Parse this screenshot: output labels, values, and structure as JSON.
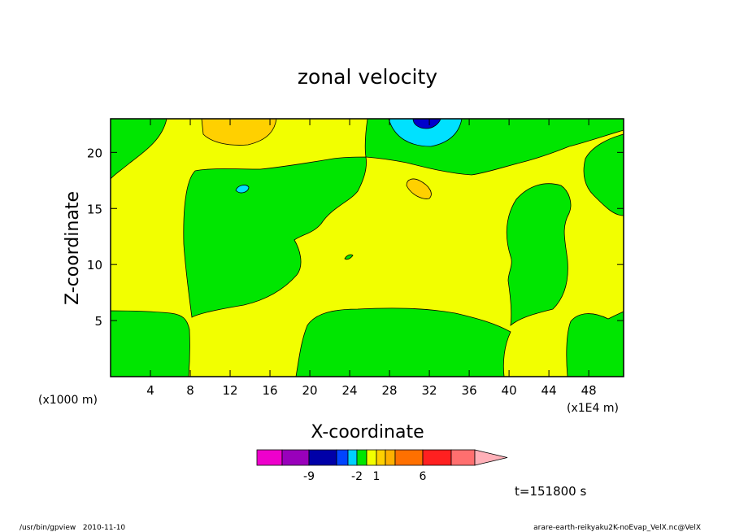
{
  "chart_data": {
    "type": "heatmap",
    "title": "zonal velocity",
    "xlabel": "X-coordinate",
    "ylabel": "Z-coordinate",
    "x_unit_left": "(x1000 m)",
    "x_unit_right": "(x1E4 m)",
    "xlim": [
      0,
      51.5
    ],
    "ylim": [
      0,
      23
    ],
    "x_ticks": [
      "4",
      "8",
      "12",
      "16",
      "20",
      "24",
      "28",
      "32",
      "36",
      "40",
      "44",
      "48"
    ],
    "x_tick_values": [
      4,
      8,
      12,
      16,
      20,
      24,
      28,
      32,
      36,
      40,
      44,
      48
    ],
    "y_ticks": [
      "5",
      "10",
      "15",
      "20"
    ],
    "y_tick_values": [
      5,
      10,
      15,
      20
    ],
    "background_color": "#f2ff00",
    "field_colors": {
      "near_zero": "#f2ff00",
      "weak_negative": "#00e600",
      "weak_positive": "#ffd000",
      "moderate_negative": "#00e1ff",
      "strong_negative": "#0000cc"
    },
    "colorbar": {
      "colors": [
        "#ee00cc",
        "#9900bb",
        "#0000a8",
        "#0044ff",
        "#00d0ff",
        "#00e600",
        "#f2ff00",
        "#ffd000",
        "#ffb000",
        "#ff7000",
        "#ff2020",
        "#ff6f6f",
        "#ffb0b8"
      ],
      "tick_labels": [
        {
          "label": "-9",
          "after_index": 1
        },
        {
          "label": "-2",
          "after_index": 4
        },
        {
          "label": "1",
          "after_index": 6
        },
        {
          "label": "6",
          "after_index": 9
        }
      ]
    },
    "time_label": "t=151800 s",
    "footer_left": "/usr/bin/gpview   2010-11-10",
    "footer_right": "arare-earth-reikyaku2K-noEvap_VelX.nc@VelX"
  }
}
